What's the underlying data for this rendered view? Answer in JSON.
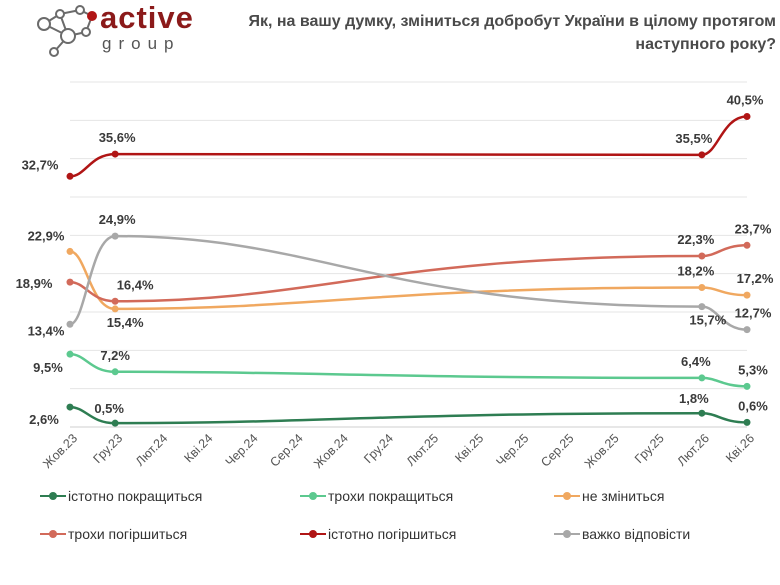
{
  "brand": {
    "name_top": "active",
    "name_bottom": "group"
  },
  "chart_data": {
    "type": "line",
    "title": "Як, на вашу думку, зміниться добробут України в цілому протягом наступного року?",
    "categories": [
      "Жов.23",
      "Гру.23",
      "Лют.24",
      "Кві.24",
      "Чер.24",
      "Сер.24",
      "Жов.24",
      "Гру.24",
      "Лют.25",
      "Кві.25",
      "Чер.25",
      "Сер.25",
      "Жов.25",
      "Гру.25",
      "Лют.26",
      "Кві.26"
    ],
    "ylim": [
      0,
      45
    ],
    "grid": true,
    "legend_position": "bottom",
    "series": [
      {
        "name": "істотно покращиться",
        "color": "#2e7d52",
        "points": [
          {
            "x": "Жов.23",
            "y": 2.6
          },
          {
            "x": "Гру.23",
            "y": 0.5
          },
          {
            "x": "Лют.26",
            "y": 1.8
          },
          {
            "x": "Кві.26",
            "y": 0.6
          }
        ],
        "labels": [
          "2,6%",
          "0,5%",
          "1,8%",
          "0,6%"
        ]
      },
      {
        "name": "трохи покращиться",
        "color": "#5cc98f",
        "points": [
          {
            "x": "Жов.23",
            "y": 9.5
          },
          {
            "x": "Гру.23",
            "y": 7.2
          },
          {
            "x": "Лют.26",
            "y": 6.4
          },
          {
            "x": "Кві.26",
            "y": 5.3
          }
        ],
        "labels": [
          "9,5%",
          "7,2%",
          "6,4%",
          "5,3%"
        ]
      },
      {
        "name": "не зміниться",
        "color": "#f0a860",
        "points": [
          {
            "x": "Жов.23",
            "y": 22.9
          },
          {
            "x": "Гру.23",
            "y": 15.4
          },
          {
            "x": "Лют.26",
            "y": 18.2
          },
          {
            "x": "Кві.26",
            "y": 17.2
          }
        ],
        "labels": [
          "22,9%",
          "15,4%",
          "18,2%",
          "17,2%"
        ]
      },
      {
        "name": "трохи погіршиться",
        "color": "#d26a5a",
        "points": [
          {
            "x": "Жов.23",
            "y": 18.9
          },
          {
            "x": "Гру.23",
            "y": 16.4
          },
          {
            "x": "Лют.26",
            "y": 22.3
          },
          {
            "x": "Кві.26",
            "y": 23.7
          }
        ],
        "labels": [
          "18,9%",
          "16,4%",
          "22,3%",
          "23,7%"
        ]
      },
      {
        "name": "істотно погіршиться",
        "color": "#b01515",
        "points": [
          {
            "x": "Жов.23",
            "y": 32.7
          },
          {
            "x": "Гру.23",
            "y": 35.6
          },
          {
            "x": "Лют.26",
            "y": 35.5
          },
          {
            "x": "Кві.26",
            "y": 40.5
          }
        ],
        "labels": [
          "32,7%",
          "35,6%",
          "35,5%",
          "40,5%"
        ]
      },
      {
        "name": "важко відповісти",
        "color": "#a8a8a8",
        "points": [
          {
            "x": "Жов.23",
            "y": 13.4
          },
          {
            "x": "Гру.23",
            "y": 24.9
          },
          {
            "x": "Лют.26",
            "y": 15.7
          },
          {
            "x": "Кві.26",
            "y": 12.7
          }
        ],
        "labels": [
          "13,4%",
          "24,9%",
          "15,7%",
          "12,7%"
        ]
      }
    ]
  }
}
